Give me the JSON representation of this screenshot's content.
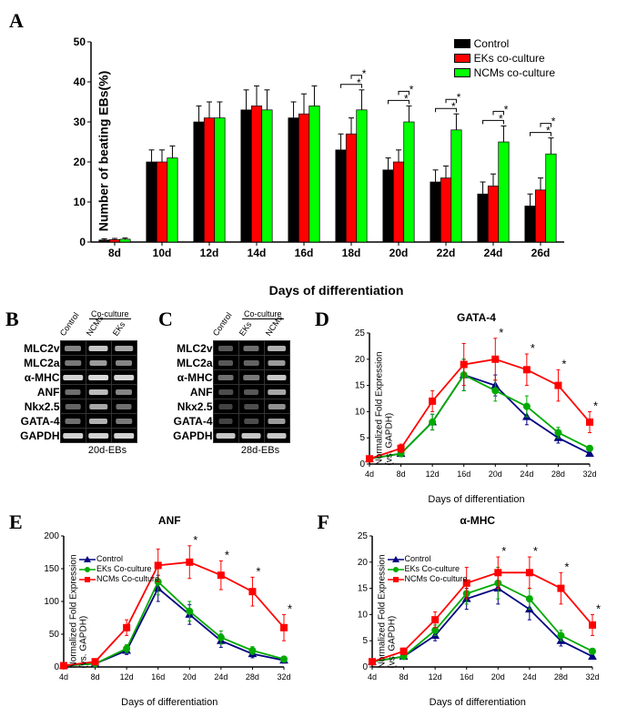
{
  "panelA": {
    "label": "A",
    "type": "bar",
    "y_label": "Number of beating EBs(%)",
    "x_label": "Days of differentiation",
    "categories": [
      "8d",
      "10d",
      "12d",
      "14d",
      "16d",
      "18d",
      "20d",
      "22d",
      "24d",
      "26d"
    ],
    "series": [
      {
        "name": "Control",
        "color": "#000000",
        "values": [
          0.5,
          20,
          30,
          33,
          31,
          23,
          18,
          15,
          12,
          9
        ],
        "err": [
          0.3,
          3,
          4,
          5,
          4,
          4,
          3,
          3,
          3,
          3
        ]
      },
      {
        "name": "EKs co-culture",
        "color": "#ff0000",
        "values": [
          0.6,
          20,
          31,
          34,
          32,
          27,
          20,
          16,
          14,
          13
        ],
        "err": [
          0.3,
          3,
          4,
          5,
          5,
          4,
          3,
          3,
          3,
          3
        ]
      },
      {
        "name": "NCMs co-culture",
        "color": "#00ff00",
        "values": [
          0.7,
          21,
          31,
          33,
          34,
          33,
          30,
          28,
          25,
          22
        ],
        "err": [
          0.3,
          3,
          4,
          5,
          5,
          5,
          4,
          4,
          4,
          4
        ]
      }
    ],
    "ylim": [
      0,
      50
    ],
    "ytick_step": 10,
    "sig_brackets": [
      {
        "cat": "18d",
        "pairs": [
          [
            0,
            2
          ],
          [
            1,
            2
          ]
        ]
      },
      {
        "cat": "20d",
        "pairs": [
          [
            0,
            2
          ],
          [
            1,
            2
          ]
        ]
      },
      {
        "cat": "22d",
        "pairs": [
          [
            0,
            2
          ],
          [
            1,
            2
          ]
        ]
      },
      {
        "cat": "24d",
        "pairs": [
          [
            0,
            2
          ],
          [
            1,
            2
          ]
        ]
      },
      {
        "cat": "26d",
        "pairs": [
          [
            0,
            2
          ],
          [
            1,
            2
          ]
        ]
      }
    ],
    "sig_marker": "*"
  },
  "panelB": {
    "label": "B",
    "caption": "20d-EBs",
    "col_headers": [
      "Control",
      "NCMs",
      "EKs"
    ],
    "coculture_label": "Co-culture",
    "genes": [
      {
        "name": "MLC2v",
        "intensities": [
          60,
          90,
          75
        ]
      },
      {
        "name": "MLC2a",
        "intensities": [
          55,
          70,
          60
        ]
      },
      {
        "name": "α-MHC",
        "intensities": [
          95,
          98,
          96
        ]
      },
      {
        "name": "ANF",
        "intensities": [
          50,
          85,
          60
        ]
      },
      {
        "name": "Nkx2.5",
        "intensities": [
          45,
          75,
          50
        ]
      },
      {
        "name": "GATA-4",
        "intensities": [
          50,
          80,
          55
        ]
      },
      {
        "name": "GAPDH",
        "intensities": [
          95,
          95,
          95
        ]
      }
    ]
  },
  "panelC": {
    "label": "C",
    "caption": "28d-EBs",
    "col_headers": [
      "Control",
      "EKs",
      "NCMs"
    ],
    "coculture_label": "Co-culture",
    "genes": [
      {
        "name": "MLC2v",
        "intensities": [
          40,
          50,
          80
        ]
      },
      {
        "name": "MLC2a",
        "intensities": [
          40,
          45,
          70
        ]
      },
      {
        "name": "α-MHC",
        "intensities": [
          50,
          55,
          90
        ]
      },
      {
        "name": "ANF",
        "intensities": [
          35,
          40,
          75
        ]
      },
      {
        "name": "Nkx2.5",
        "intensities": [
          30,
          35,
          65
        ]
      },
      {
        "name": "GATA-4",
        "intensities": [
          30,
          35,
          70
        ]
      },
      {
        "name": "GAPDH",
        "intensities": [
          90,
          90,
          90
        ]
      }
    ]
  },
  "lineChartCommon": {
    "y_label": "Normalized Fold Expression\n(vs. GAPDH)",
    "x_label": "Days of differentiation",
    "x_categories": [
      "4d",
      "8d",
      "12d",
      "16d",
      "20d",
      "24d",
      "28d",
      "32d"
    ],
    "x_positions": [
      4,
      8,
      12,
      16,
      20,
      24,
      28,
      32
    ],
    "series_meta": [
      {
        "name": "Control",
        "color": "#000080",
        "marker": "triangle"
      },
      {
        "name": "EKs Co-culture",
        "color": "#00aa00",
        "marker": "circle"
      },
      {
        "name": "NCMs Co-culture",
        "color": "#ff0000",
        "marker": "square"
      }
    ]
  },
  "panelD": {
    "label": "D",
    "title": "GATA-4",
    "ylim": [
      0,
      25
    ],
    "ytick_step": 5,
    "series": [
      {
        "values": [
          1,
          2,
          8,
          17,
          15,
          9,
          5,
          2
        ],
        "err": [
          0.3,
          0.6,
          1.5,
          3,
          2,
          1.5,
          1,
          0.5
        ]
      },
      {
        "values": [
          1,
          2,
          8,
          17,
          14,
          11,
          6,
          3
        ],
        "err": [
          0.3,
          0.6,
          1.5,
          3,
          2,
          2,
          1,
          0.5
        ]
      },
      {
        "values": [
          1,
          3,
          12,
          19,
          20,
          18,
          15,
          8
        ],
        "err": [
          0.3,
          0.8,
          2,
          4,
          4,
          3,
          3,
          2
        ]
      }
    ],
    "sig_x": [
      20,
      24,
      28,
      32
    ]
  },
  "panelE": {
    "label": "E",
    "title": "ANF",
    "ylim": [
      0,
      200
    ],
    "ytick_step": 50,
    "series": [
      {
        "values": [
          2,
          5,
          25,
          120,
          80,
          40,
          20,
          10
        ],
        "err": [
          1,
          2,
          6,
          20,
          15,
          10,
          6,
          4
        ]
      },
      {
        "values": [
          2,
          5,
          28,
          130,
          85,
          45,
          25,
          12
        ],
        "err": [
          1,
          2,
          6,
          20,
          15,
          10,
          6,
          4
        ]
      },
      {
        "values": [
          2,
          8,
          60,
          155,
          160,
          140,
          115,
          60
        ],
        "err": [
          1,
          3,
          12,
          25,
          25,
          22,
          22,
          20
        ]
      }
    ],
    "sig_x": [
      20,
      24,
      28,
      32
    ]
  },
  "panelF": {
    "label": "F",
    "title": "α-MHC",
    "ylim": [
      0,
      25
    ],
    "ytick_step": 5,
    "series": [
      {
        "values": [
          1,
          2,
          6,
          13,
          15,
          11,
          5,
          2
        ],
        "err": [
          0.3,
          0.5,
          1,
          2,
          3,
          2,
          1,
          0.5
        ]
      },
      {
        "values": [
          1,
          2,
          7,
          14,
          16,
          13,
          6,
          3
        ],
        "err": [
          0.3,
          0.5,
          1,
          2,
          3,
          2,
          1,
          0.5
        ]
      },
      {
        "values": [
          1,
          3,
          9,
          16,
          18,
          18,
          15,
          8
        ],
        "err": [
          0.3,
          0.6,
          1.5,
          3,
          3,
          3,
          3,
          2
        ]
      }
    ],
    "sig_x": [
      20,
      24,
      28,
      32
    ]
  }
}
